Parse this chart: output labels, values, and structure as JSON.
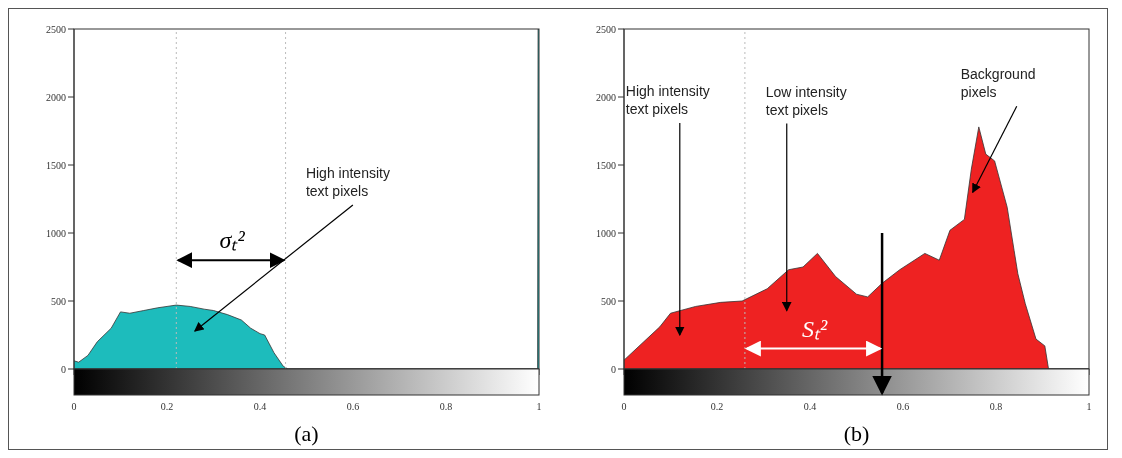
{
  "chart_data": [
    {
      "type": "area",
      "title": "(a)",
      "x": [
        0,
        0.01,
        0.03,
        0.05,
        0.08,
        0.1,
        0.12,
        0.15,
        0.18,
        0.2,
        0.22,
        0.25,
        0.28,
        0.3,
        0.33,
        0.36,
        0.38,
        0.4,
        0.41,
        0.43,
        0.45,
        0.46,
        0.997,
        0.998,
        1
      ],
      "series": [
        {
          "color": "#1dbcbc",
          "values": [
            60,
            50,
            100,
            200,
            300,
            420,
            410,
            430,
            450,
            460,
            470,
            460,
            440,
            430,
            400,
            360,
            300,
            260,
            250,
            120,
            20,
            0,
            0,
            2500,
            2500
          ]
        }
      ],
      "xlim": [
        0,
        1
      ],
      "xticks": [
        0,
        0.2,
        0.4,
        0.6,
        0.8,
        1
      ],
      "ylim": [
        0,
        2500
      ],
      "yticks": [
        0,
        500,
        1000,
        1500,
        2000,
        2500
      ],
      "ref_lines": [
        {
          "axis": "x",
          "value": 0.22,
          "color": "#bbbbbb",
          "line_style": "dotted"
        },
        {
          "axis": "x",
          "value": 0.455,
          "color": "#bbbbbb",
          "line_style": "dotted"
        }
      ],
      "annotations": [
        "σₜ²",
        "High intensity text pixels"
      ]
    },
    {
      "type": "area",
      "title": "(b)",
      "x": [
        0,
        0.077,
        0.1,
        0.154,
        0.208,
        0.254,
        0.308,
        0.354,
        0.385,
        0.416,
        0.455,
        0.5,
        0.524,
        0.555,
        0.593,
        0.647,
        0.678,
        0.701,
        0.732,
        0.747,
        0.763,
        0.778,
        0.797,
        0.824,
        0.839,
        0.847,
        0.863,
        0.886,
        0.905,
        0.913,
        1
      ],
      "series": [
        {
          "color": "#ee2222",
          "values": [
            65,
            310,
            410,
            460,
            490,
            500,
            590,
            730,
            750,
            850,
            680,
            550,
            530,
            630,
            730,
            850,
            800,
            1020,
            1100,
            1470,
            1780,
            1580,
            1530,
            1190,
            870,
            700,
            480,
            220,
            170,
            0,
            0
          ]
        }
      ],
      "xlim": [
        0,
        1
      ],
      "xticks": [
        0,
        0.2,
        0.4,
        0.6,
        0.8,
        1
      ],
      "ylim": [
        0,
        2500
      ],
      "yticks": [
        0,
        500,
        1000,
        1500,
        2000,
        2500
      ],
      "ref_lines": [
        {
          "axis": "x",
          "value": 0.26,
          "color": "#bbbbbb",
          "line_style": "dotted"
        },
        {
          "axis": "x",
          "value": 0.555,
          "color": "#000000",
          "line_style": "solid"
        }
      ],
      "annotations": [
        "Sₜ²",
        "High intensity text pixels",
        "Low intensity text pixels",
        "Background pixels"
      ]
    }
  ]
}
